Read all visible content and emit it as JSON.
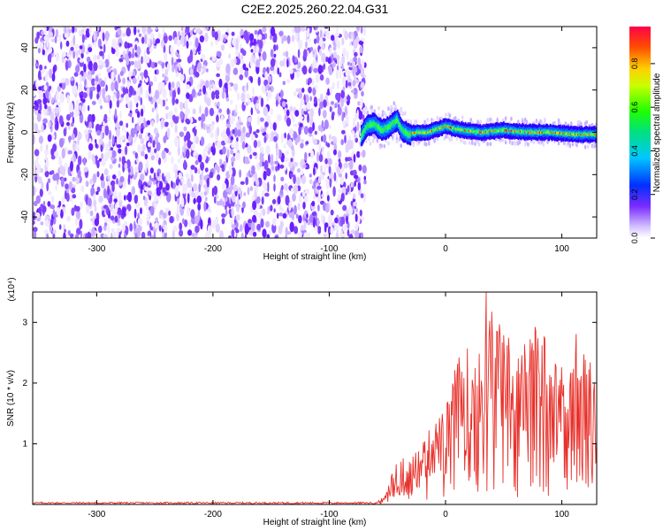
{
  "title": "C2E2.2025.260.22.04.G31",
  "chart_data": [
    {
      "type": "heatmap",
      "xlabel": "Height of straight line (km)",
      "ylabel": "Frequency (Hz)",
      "xlim": [
        -355,
        130
      ],
      "ylim": [
        -50,
        50
      ],
      "xticks": [
        -300,
        -200,
        -100,
        0,
        100
      ],
      "yticks": [
        -40,
        -20,
        0,
        20,
        40
      ],
      "noise_region_x": [
        -355,
        -73
      ],
      "signal_trace": {
        "x": [
          -73,
          -68,
          -62,
          -55,
          -48,
          -42,
          -38,
          -32,
          -25,
          -15,
          -5,
          0,
          5,
          15,
          30,
          50,
          70,
          90,
          110,
          128
        ],
        "y": [
          -2,
          3,
          4,
          1,
          3,
          6,
          1,
          -1,
          0,
          0,
          2,
          3,
          2,
          1,
          0,
          1,
          0,
          0,
          -1,
          -1
        ]
      },
      "colorbar": {
        "label": "Normalized spectral amplitude",
        "ticks": [
          "0.0",
          "0.2",
          "0.4",
          "0.6",
          "0.8"
        ],
        "range": [
          0,
          0.97
        ]
      },
      "grid": false
    },
    {
      "type": "line",
      "xlabel": "Height of straight line (km)",
      "ylabel": "SNR (10 * v/v)",
      "multiplier": "(x10⁴)",
      "xlim": [
        -355,
        130
      ],
      "ylim": [
        0,
        3.5
      ],
      "xticks": [
        -300,
        -200,
        -100,
        0,
        100
      ],
      "yticks": [
        1,
        2,
        3
      ],
      "series": [
        {
          "color": "#e8302a",
          "envelope_x": [
            -355,
            -60,
            -52,
            -45,
            -38,
            -30,
            -20,
            -10,
            0,
            10,
            20,
            30,
            35,
            40,
            50,
            60,
            70,
            80,
            90,
            100,
            110,
            120,
            130
          ],
          "envelope_y": [
            0.03,
            0.03,
            0.15,
            0.6,
            0.8,
            0.7,
            1.0,
            1.3,
            1.5,
            2.3,
            2.5,
            2.8,
            3.4,
            3.1,
            2.9,
            2.3,
            2.6,
            3.0,
            2.5,
            2.2,
            2.9,
            2.5,
            2.0
          ]
        }
      ],
      "grid": false
    }
  ]
}
